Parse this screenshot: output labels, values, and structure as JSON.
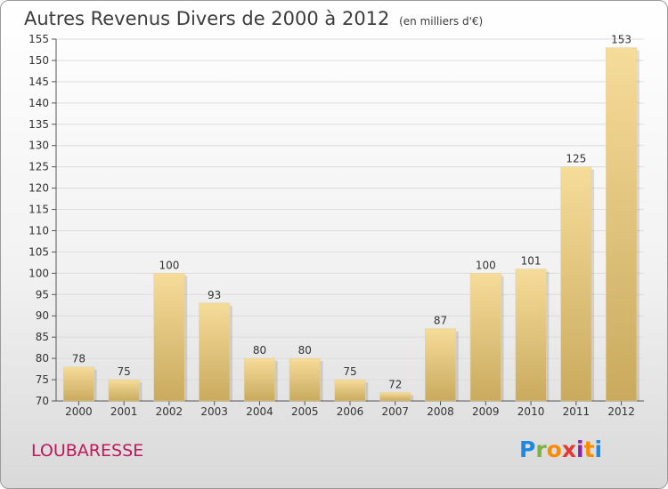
{
  "header": {
    "title": "Autres Revenus Divers de 2000 à 2012",
    "subtitle": "(en milliers d'€)"
  },
  "footer": {
    "place": "LOUBARESSE",
    "logo": {
      "letters": [
        "P",
        "r",
        "o",
        "x",
        "i",
        "t",
        "i"
      ],
      "colors": [
        "#1e88e5",
        "#7cb342",
        "#fb8c00",
        "#e53935",
        "#8e24aa",
        "#fb8c00",
        "#1e88e5"
      ]
    }
  },
  "chart_data": {
    "type": "bar",
    "title": "Autres Revenus Divers de 2000 à 2012",
    "subtitle": "(en milliers d'€)",
    "categories": [
      "2000",
      "2001",
      "2002",
      "2003",
      "2004",
      "2005",
      "2006",
      "2007",
      "2008",
      "2009",
      "2010",
      "2011",
      "2012"
    ],
    "values": [
      78,
      75,
      100,
      93,
      80,
      80,
      75,
      72,
      87,
      100,
      101,
      125,
      153
    ],
    "ylim": [
      70,
      155
    ],
    "yticks": [
      70,
      75,
      80,
      85,
      90,
      95,
      100,
      105,
      110,
      115,
      120,
      125,
      130,
      135,
      140,
      145,
      150,
      155
    ],
    "grid": true,
    "bar_color": "#e8c77a"
  }
}
